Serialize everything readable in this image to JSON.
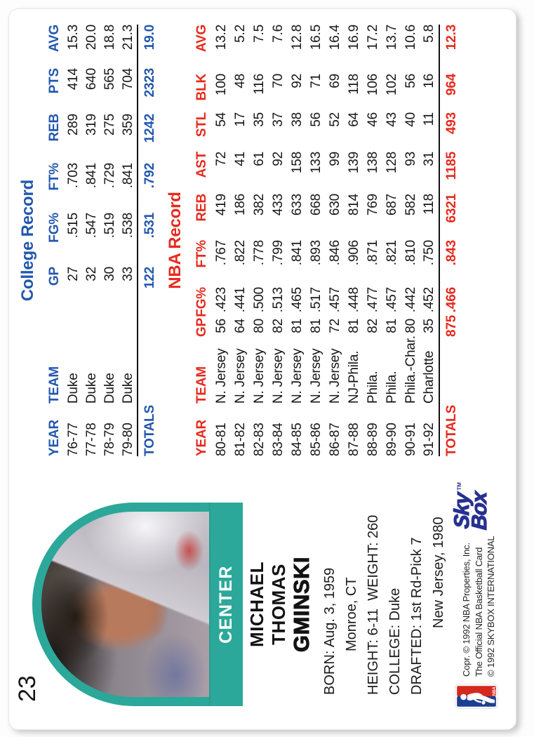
{
  "card": {
    "number": "23",
    "position": "CENTER",
    "name_lines": [
      "MICHAEL",
      "THOMAS",
      "GMINSKI"
    ],
    "bio_lines": [
      "BORN: Aug. 3, 1959",
      "Monroe, CT",
      "HEIGHT: 6-11  WEIGHT: 260",
      "COLLEGE: Duke",
      "DRAFTED: 1st Rd-Pick 7",
      "New Jersey, 1980"
    ]
  },
  "college_record": {
    "title": "College Record",
    "headers": [
      "YEAR",
      "TEAM",
      "GP",
      "FG%",
      "FT%",
      "REB",
      "PTS",
      "AVG"
    ],
    "rows": [
      [
        "76-77",
        "Duke",
        "27",
        ".515",
        ".703",
        "289",
        "414",
        "15.3"
      ],
      [
        "77-78",
        "Duke",
        "32",
        ".547",
        ".841",
        "319",
        "640",
        "20.0"
      ],
      [
        "78-79",
        "Duke",
        "30",
        ".519",
        ".729",
        "275",
        "565",
        "18.8"
      ],
      [
        "79-80",
        "Duke",
        "33",
        ".538",
        ".841",
        "359",
        "704",
        "21.3"
      ]
    ],
    "totals": [
      "TOTALS",
      "",
      "122",
      ".531",
      ".792",
      "1242",
      "2323",
      "19.0"
    ]
  },
  "nba_record": {
    "title": "NBA Record",
    "headers": [
      "YEAR",
      "TEAM",
      "GP",
      "FG%",
      "FT%",
      "REB",
      "AST",
      "STL",
      "BLK",
      "AVG"
    ],
    "rows": [
      [
        "80-81",
        "N. Jersey",
        "56",
        ".423",
        ".767",
        "419",
        "72",
        "54",
        "100",
        "13.2"
      ],
      [
        "81-82",
        "N. Jersey",
        "64",
        ".441",
        ".822",
        "186",
        "41",
        "17",
        "48",
        "5.2"
      ],
      [
        "82-83",
        "N. Jersey",
        "80",
        ".500",
        ".778",
        "382",
        "61",
        "35",
        "116",
        "7.5"
      ],
      [
        "83-84",
        "N. Jersey",
        "82",
        ".513",
        ".799",
        "433",
        "92",
        "37",
        "70",
        "7.6"
      ],
      [
        "84-85",
        "N. Jersey",
        "81",
        ".465",
        ".841",
        "633",
        "158",
        "38",
        "92",
        "12.8"
      ],
      [
        "85-86",
        "N. Jersey",
        "81",
        ".517",
        ".893",
        "668",
        "133",
        "56",
        "71",
        "16.5"
      ],
      [
        "86-87",
        "N. Jersey",
        "72",
        ".457",
        ".846",
        "630",
        "99",
        "52",
        "69",
        "16.4"
      ],
      [
        "87-88",
        "NJ-Phila.",
        "81",
        ".448",
        ".906",
        "814",
        "139",
        "64",
        "118",
        "16.9"
      ],
      [
        "88-89",
        "Phila.",
        "82",
        ".477",
        ".871",
        "769",
        "138",
        "46",
        "106",
        "17.2"
      ],
      [
        "89-90",
        "Phila.",
        "81",
        ".457",
        ".821",
        "687",
        "128",
        "43",
        "102",
        "13.7"
      ],
      [
        "90-91",
        "Phila.-Char.",
        "80",
        ".442",
        ".810",
        "582",
        "93",
        "40",
        "56",
        "10.6"
      ],
      [
        "91-92",
        "Charlotte",
        "35",
        ".452",
        ".750",
        "118",
        "31",
        "11",
        "16",
        "5.8"
      ]
    ],
    "totals": [
      "TOTALS",
      "",
      "875",
      ".466",
      ".843",
      "6321",
      "1185",
      "493",
      "964",
      "12.3"
    ]
  },
  "footer": {
    "copyright_lines": [
      "Copr. © 1992 NBA Properties, Inc.",
      "The Official NBA Basketball Card",
      "© 1992 SKYBOX INTERNATIONAL"
    ],
    "skybox": {
      "sky": "Sky",
      "box": "Box",
      "tm": "TM"
    },
    "nba_logo_text": "NBA"
  },
  "colors": {
    "teal": "#2ba89a",
    "blue": "#2357ae",
    "red": "#e62a1d",
    "navy": "#27318f"
  }
}
